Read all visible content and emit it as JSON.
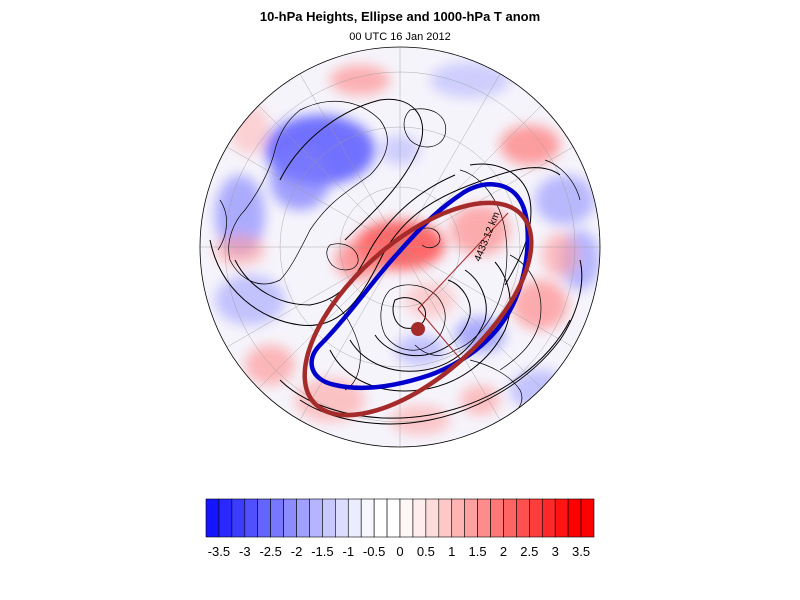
{
  "header": {
    "title": "10-hPa Heights, Ellipse and 1000-hPa T anom",
    "subtitle": "00 UTC 16 Jan 2012"
  },
  "map": {
    "ellipse_label": "4433.12 km",
    "ellipse_color": "#a52a2a",
    "contour_color": "#0000cc",
    "coast_color": "#000000"
  },
  "colorbar": {
    "min": -3.75,
    "max": 3.75,
    "step": 0.25,
    "colors": [
      "#1414ff",
      "#2828ff",
      "#3c3cff",
      "#5050ff",
      "#6464ff",
      "#7878ff",
      "#8c8cff",
      "#a0a0ff",
      "#b4b4ff",
      "#c8c8ff",
      "#dcdcff",
      "#ececff",
      "#f6f6ff",
      "#ffffff",
      "#ffffff",
      "#fff6f6",
      "#ffecec",
      "#ffdcdc",
      "#ffc8c8",
      "#ffb4b4",
      "#ffa0a0",
      "#ff8c8c",
      "#ff7878",
      "#ff6464",
      "#ff5050",
      "#ff3c3c",
      "#ff2828",
      "#ff1414",
      "#ff0000",
      "#ff0000"
    ],
    "tick_labels": [
      "-3.5",
      "-3",
      "-2.5",
      "-2",
      "-1.5",
      "-1",
      "-0.5",
      "0",
      "0.5",
      "1",
      "1.5",
      "2",
      "2.5",
      "3",
      "3.5"
    ]
  }
}
